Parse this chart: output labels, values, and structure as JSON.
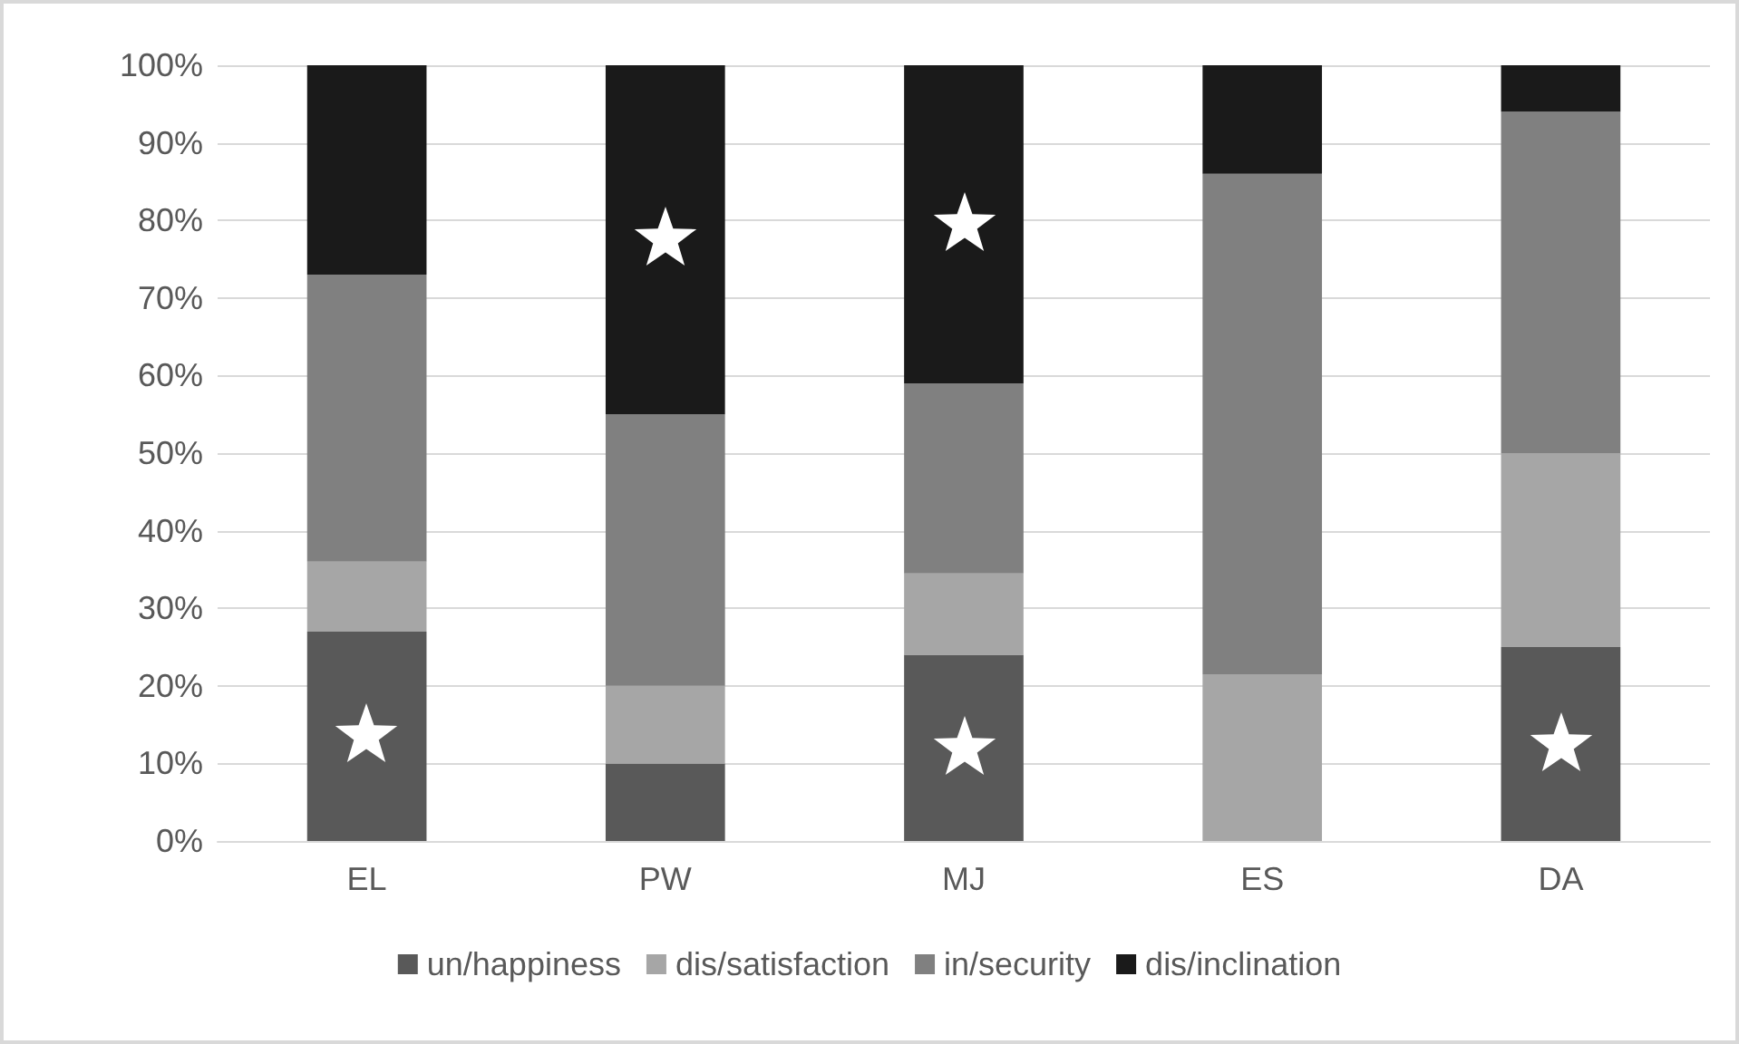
{
  "chart_data": {
    "type": "bar",
    "stacked": true,
    "categories": [
      "EL",
      "PW",
      "MJ",
      "ES",
      "DA"
    ],
    "series": [
      {
        "name": "un/happiness",
        "color": "#595959",
        "values": [
          27,
          10,
          24,
          0,
          25
        ]
      },
      {
        "name": "dis/satisfaction",
        "color": "#a6a6a6",
        "values": [
          9,
          10,
          10.5,
          21.5,
          25
        ]
      },
      {
        "name": "in/security",
        "color": "#808080",
        "values": [
          37,
          35,
          24.5,
          64.5,
          44
        ]
      },
      {
        "name": "dis/inclination",
        "color": "#1a1a1a",
        "values": [
          27,
          45,
          41,
          14,
          6
        ]
      }
    ],
    "ylim": [
      0,
      100
    ],
    "yticks": [
      {
        "value": 0,
        "label": "0%"
      },
      {
        "value": 10,
        "label": "10%"
      },
      {
        "value": 20,
        "label": "20%"
      },
      {
        "value": 30,
        "label": "30%"
      },
      {
        "value": 40,
        "label": "40%"
      },
      {
        "value": 50,
        "label": "50%"
      },
      {
        "value": 60,
        "label": "60%"
      },
      {
        "value": 70,
        "label": "70%"
      },
      {
        "value": 80,
        "label": "80%"
      },
      {
        "value": 90,
        "label": "90%"
      },
      {
        "value": 100,
        "label": "100%"
      }
    ],
    "grid": "y",
    "legend": "bottom"
  }
}
